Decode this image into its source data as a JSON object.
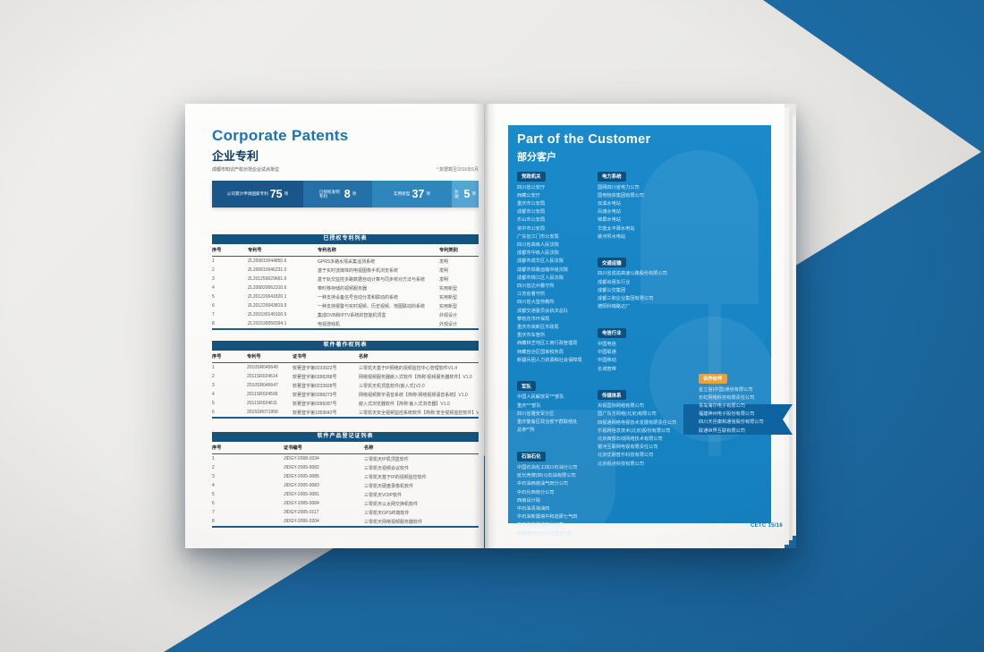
{
  "left_page": {
    "title_en": "Corporate Patents",
    "title_zh": "企业专利",
    "subtitle": "成都市知识产权示范企业试点单位",
    "note": "* 数据截至2016年6月",
    "stats": [
      {
        "label": "公司累计申请国家专利",
        "value": "75",
        "unit": "项"
      },
      {
        "label": "已授权发明专利",
        "value": "8",
        "unit": "项"
      },
      {
        "label": "实用新型",
        "value": "37",
        "unit": "项"
      },
      {
        "label": "外观",
        "value": "5",
        "unit": "项"
      }
    ],
    "tables": [
      {
        "title": "已授权专利列表",
        "headers": [
          "序号",
          "专利号",
          "专利名称",
          "专利类别"
        ],
        "rows": [
          [
            "1",
            "ZL200810044850.6",
            "GPRS多路水情采集遥测系统",
            "发明"
          ],
          [
            "2",
            "ZL200810046231.0",
            "基于实时流媒体的电视图像手机浏览系统",
            "发明"
          ],
          [
            "3",
            "ZL201250029661.6",
            "基于轨交监控多路数据自动计算与同步校对方法与系统",
            "发明"
          ],
          [
            "4",
            "ZL200820062310.6",
            "带时移存储的视频服务器",
            "实用新型"
          ],
          [
            "5",
            "ZL201220041820.1",
            "一种支持设备信号自动分发和联动的系统",
            "实用新型"
          ],
          [
            "6",
            "ZL201220043819.9",
            "一种支持报警与实时视频、历史视频、地图联动的系统",
            "实用新型"
          ],
          [
            "7",
            "ZL201530140100.6",
            "集成DVB和IPTV系统的智能机顶盒",
            "外观设计"
          ],
          [
            "8",
            "ZL201530058394.1",
            "电视游戏机",
            "外观设计"
          ]
        ]
      },
      {
        "title": "软件著作权列表",
        "headers": [
          "序号",
          "专利号",
          "证书号",
          "名称"
        ],
        "rows": [
          [
            "1",
            "2010SR045649",
            "软著登字第0233922号",
            "三零凯天基于IP网络的视频监控中心管理软件V1.4"
          ],
          [
            "2",
            "2011SR024614",
            "软著登字第0288288号",
            "网络视频服务器嵌入式软件【简称:视频服务器软件】V1.0"
          ],
          [
            "3",
            "2010SR045647",
            "软著登字第0233928号",
            "三零凯天机顶盒软件(嵌入式)V2.0"
          ],
          [
            "4",
            "2011SR024599",
            "软著登字第0288273号",
            "网络视频数字语音系统【简称:网络视频语音系统】V1.0"
          ],
          [
            "5",
            "2011SR024611",
            "软著登字第0288287号",
            "嵌入式浏览器软件【简称:嵌入式浏览器】V1.0"
          ],
          [
            "6",
            "2015SR071956",
            "软著登字第1059042号",
            "三零凯天安全视频监控系统软件【简称:安全视频监控软件】V2.0"
          ]
        ]
      },
      {
        "title": "软件产品登记证列表",
        "headers": [
          "序号",
          "证书编号",
          "名称"
        ],
        "rows": [
          [
            "1",
            "JIDGY-2008-0334",
            "三零凯天IP机顶盒软件"
          ],
          [
            "2",
            "JIDGY-2005-0082",
            "三零凯天视频会议软件"
          ],
          [
            "3",
            "JIDGY-2005-0085",
            "三零凯天基于IP的视频监控软件"
          ],
          [
            "4",
            "JIDGY-2005-0083",
            "三零凯天硬盘录像机软件"
          ],
          [
            "5",
            "JIDGY-2005-0081",
            "三零凯天VOIP软件"
          ],
          [
            "6",
            "JIDGY-2005-0084",
            "三零凯天以太网交换机软件"
          ],
          [
            "7",
            "JIDGY-2005-0117",
            "三零凯天GPS终端软件"
          ],
          [
            "8",
            "JIDGY-2006-0204",
            "三零凯天网络视频服务器软件"
          ]
        ]
      }
    ]
  },
  "right_page": {
    "title_en": "Part of the Customer",
    "title_zh": "部分客户",
    "columns": [
      {
        "sections": [
          {
            "badge": "党政机关",
            "items": [
              "四川省公安厅",
              "西藏公安厅",
              "重庆市公安局",
              "成都市公安局",
              "乐山市公安局",
              "资中市公安局",
              "广东省江门市公安局",
              "四川省高级人民法院",
              "成都市中级人民法院",
              "成都市成华区人民法院",
              "成都市铁路运输中级法院",
              "成都市锦江区人民法院",
              "四川省达州看守所",
              "江苏省看守所",
              "四川省大堡劳教所",
              "成都交通委员会执法总队",
              "攀枝花市环保局",
              "重庆市高新区市政局",
              "重庆市车管所",
              "西藏林芝地区工商行政管理局",
              "西藏自治区国家税务局",
              "新疆兵团人力资源和社会保障局"
            ]
          },
          {
            "badge": "军队",
            "items": [
              "中国人民解放军***部队",
              "重庆***部队",
              "四川省雅安军分区",
              "重庆警备区政治部干群联络处",
              "总参**所"
            ]
          },
          {
            "badge": "石油石化",
            "items": [
              "中国石油化工四川石油分公司",
              "延长壳牌(四川)石油有限公司",
              "中石油西南油气田分公司",
              "中石化西南分公司",
              "西南设计院",
              "中石油青海油田",
              "中石油新疆塔中和迪那七气田",
              "中石油吉林油田分公司",
              "西南油气田分公司重庆气矿"
            ]
          }
        ]
      },
      {
        "sections": [
          {
            "badge": "电力系统",
            "items": [
              "国网四川省电力公司",
              "国电物资集团有限公司",
              "双溪水电站",
              "凤滩水电站",
              "锦屏水电站",
              "华能太平驿水电站",
              "姚河坝水电站"
            ]
          },
          {
            "badge": "交通运输",
            "items": [
              "四川省成渝高速公路股份有限公司",
              "成都出租车行业",
              "成都公交集团",
              "成都三和企业集团有限公司",
              "德阳科瑞路达厂"
            ]
          },
          {
            "badge": "电信行业",
            "items": [
              "中国电信",
              "中国联通",
              "中国移动",
              "长城宽带"
            ]
          },
          {
            "badge": "传媒体系",
            "items": [
              "央视国际网络有限公司",
              "国广东方网络(北京)有限公司",
              "四视通网络电视技术发展有限责任公司",
              "乐视网信息技术(北京)股份有限公司",
              "北京西部石线网络技术有限公司",
              "银河互联网电视有限责任公司",
              "北京优朋普乐科技有限公司",
              "北京视点科技有限公司"
            ]
          }
        ]
      },
      {
        "sections": [
          {
            "badge": "合作伙伴",
            "accent": "orange",
            "items": [
              "星立信(中国)通信有限公司",
              "长虹网络科技有限责任公司",
              "青岛海尔电子有限公司",
              "福建神州电子股份有限公司",
              "四川天邑康和通信股份有限公司",
              "联通世界互联有限公司"
            ]
          }
        ]
      }
    ]
  },
  "footer": {
    "page_label": "CETC 15/16"
  },
  "colors": {
    "accent_blue": "#1b74ae",
    "deep_navy": "#15537f",
    "panel_blue": "#1886c7",
    "badge_blue": "#0b507f",
    "badge_orange": "#e9a13b",
    "diagonal_blue": "#1d6da7"
  }
}
